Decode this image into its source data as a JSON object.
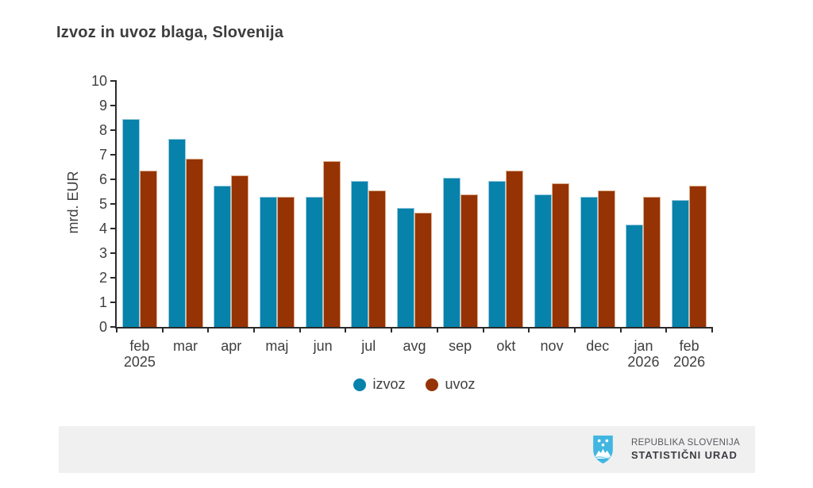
{
  "chart_data": {
    "type": "bar",
    "title": "Izvoz in uvoz blaga, Slovenija",
    "ylabel": "mrd. EUR",
    "ylim": [
      0,
      10
    ],
    "ytick_step": 1,
    "grid": false,
    "legend_position": "bottom",
    "categories": [
      {
        "label": "feb",
        "year": "2025"
      },
      {
        "label": "mar",
        "year": ""
      },
      {
        "label": "apr",
        "year": ""
      },
      {
        "label": "maj",
        "year": ""
      },
      {
        "label": "jun",
        "year": ""
      },
      {
        "label": "jul",
        "year": ""
      },
      {
        "label": "avg",
        "year": ""
      },
      {
        "label": "sep",
        "year": ""
      },
      {
        "label": "okt",
        "year": ""
      },
      {
        "label": "nov",
        "year": ""
      },
      {
        "label": "dec",
        "year": ""
      },
      {
        "label": "jan",
        "year": "2026"
      },
      {
        "label": "feb",
        "year": "2026"
      }
    ],
    "series": [
      {
        "name": "izvoz",
        "color": "#0782ab",
        "edge_color": "#9ccbdc",
        "values": [
          8.45,
          7.65,
          5.75,
          5.3,
          5.3,
          5.95,
          4.85,
          6.05,
          5.95,
          5.4,
          5.3,
          4.15,
          5.15
        ]
      },
      {
        "name": "uvoz",
        "color": "#963305",
        "edge_color": "#ddb18e",
        "values": [
          6.35,
          6.85,
          6.15,
          5.3,
          6.75,
          5.55,
          4.65,
          5.4,
          6.35,
          5.85,
          5.55,
          5.3,
          5.75
        ]
      }
    ]
  },
  "footer": {
    "org_line1": "REPUBLIKA SLOVENIJA",
    "org_line2": "STATISTIČNI URAD",
    "logo_color": "#41b6e1"
  }
}
